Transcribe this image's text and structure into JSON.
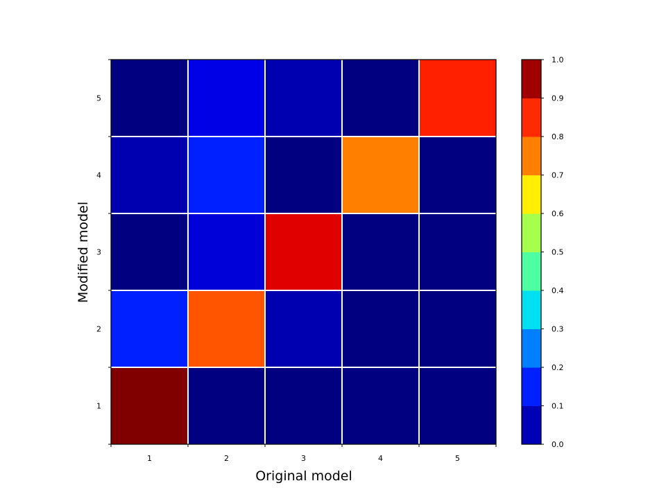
{
  "chart_data": {
    "type": "heatmap",
    "title": "",
    "xlabel": "Original model",
    "ylabel": "Modified model",
    "x_categories": [
      "1",
      "2",
      "3",
      "4",
      "5"
    ],
    "y_categories": [
      "1",
      "2",
      "3",
      "4",
      "5"
    ],
    "values": [
      [
        0.97,
        0.02,
        0.02,
        0.02,
        0.02
      ],
      [
        0.13,
        0.78,
        0.04,
        0.02,
        0.02
      ],
      [
        0.02,
        0.09,
        0.86,
        0.02,
        0.02
      ],
      [
        0.05,
        0.12,
        0.02,
        0.74,
        0.02
      ],
      [
        0.02,
        0.1,
        0.06,
        0.02,
        0.84
      ]
    ],
    "values_note_order": "rows indexed by y category (bottom to top), columns by x category (left to right)",
    "colorbar": {
      "min": 0.0,
      "max": 1.0,
      "ticks": [
        "0.0",
        "0.1",
        "0.2",
        "0.3",
        "0.4",
        "0.5",
        "0.6",
        "0.7",
        "0.8",
        "0.9",
        "1.0"
      ],
      "levels": 10,
      "colors": [
        "#0000b6",
        "#0020ff",
        "#0080ff",
        "#00e0f0",
        "#4dffa0",
        "#a6ff4d",
        "#ffee00",
        "#ff8000",
        "#ff2a00",
        "#a00000"
      ]
    },
    "grid": true,
    "grid_color": "#ffffff"
  }
}
